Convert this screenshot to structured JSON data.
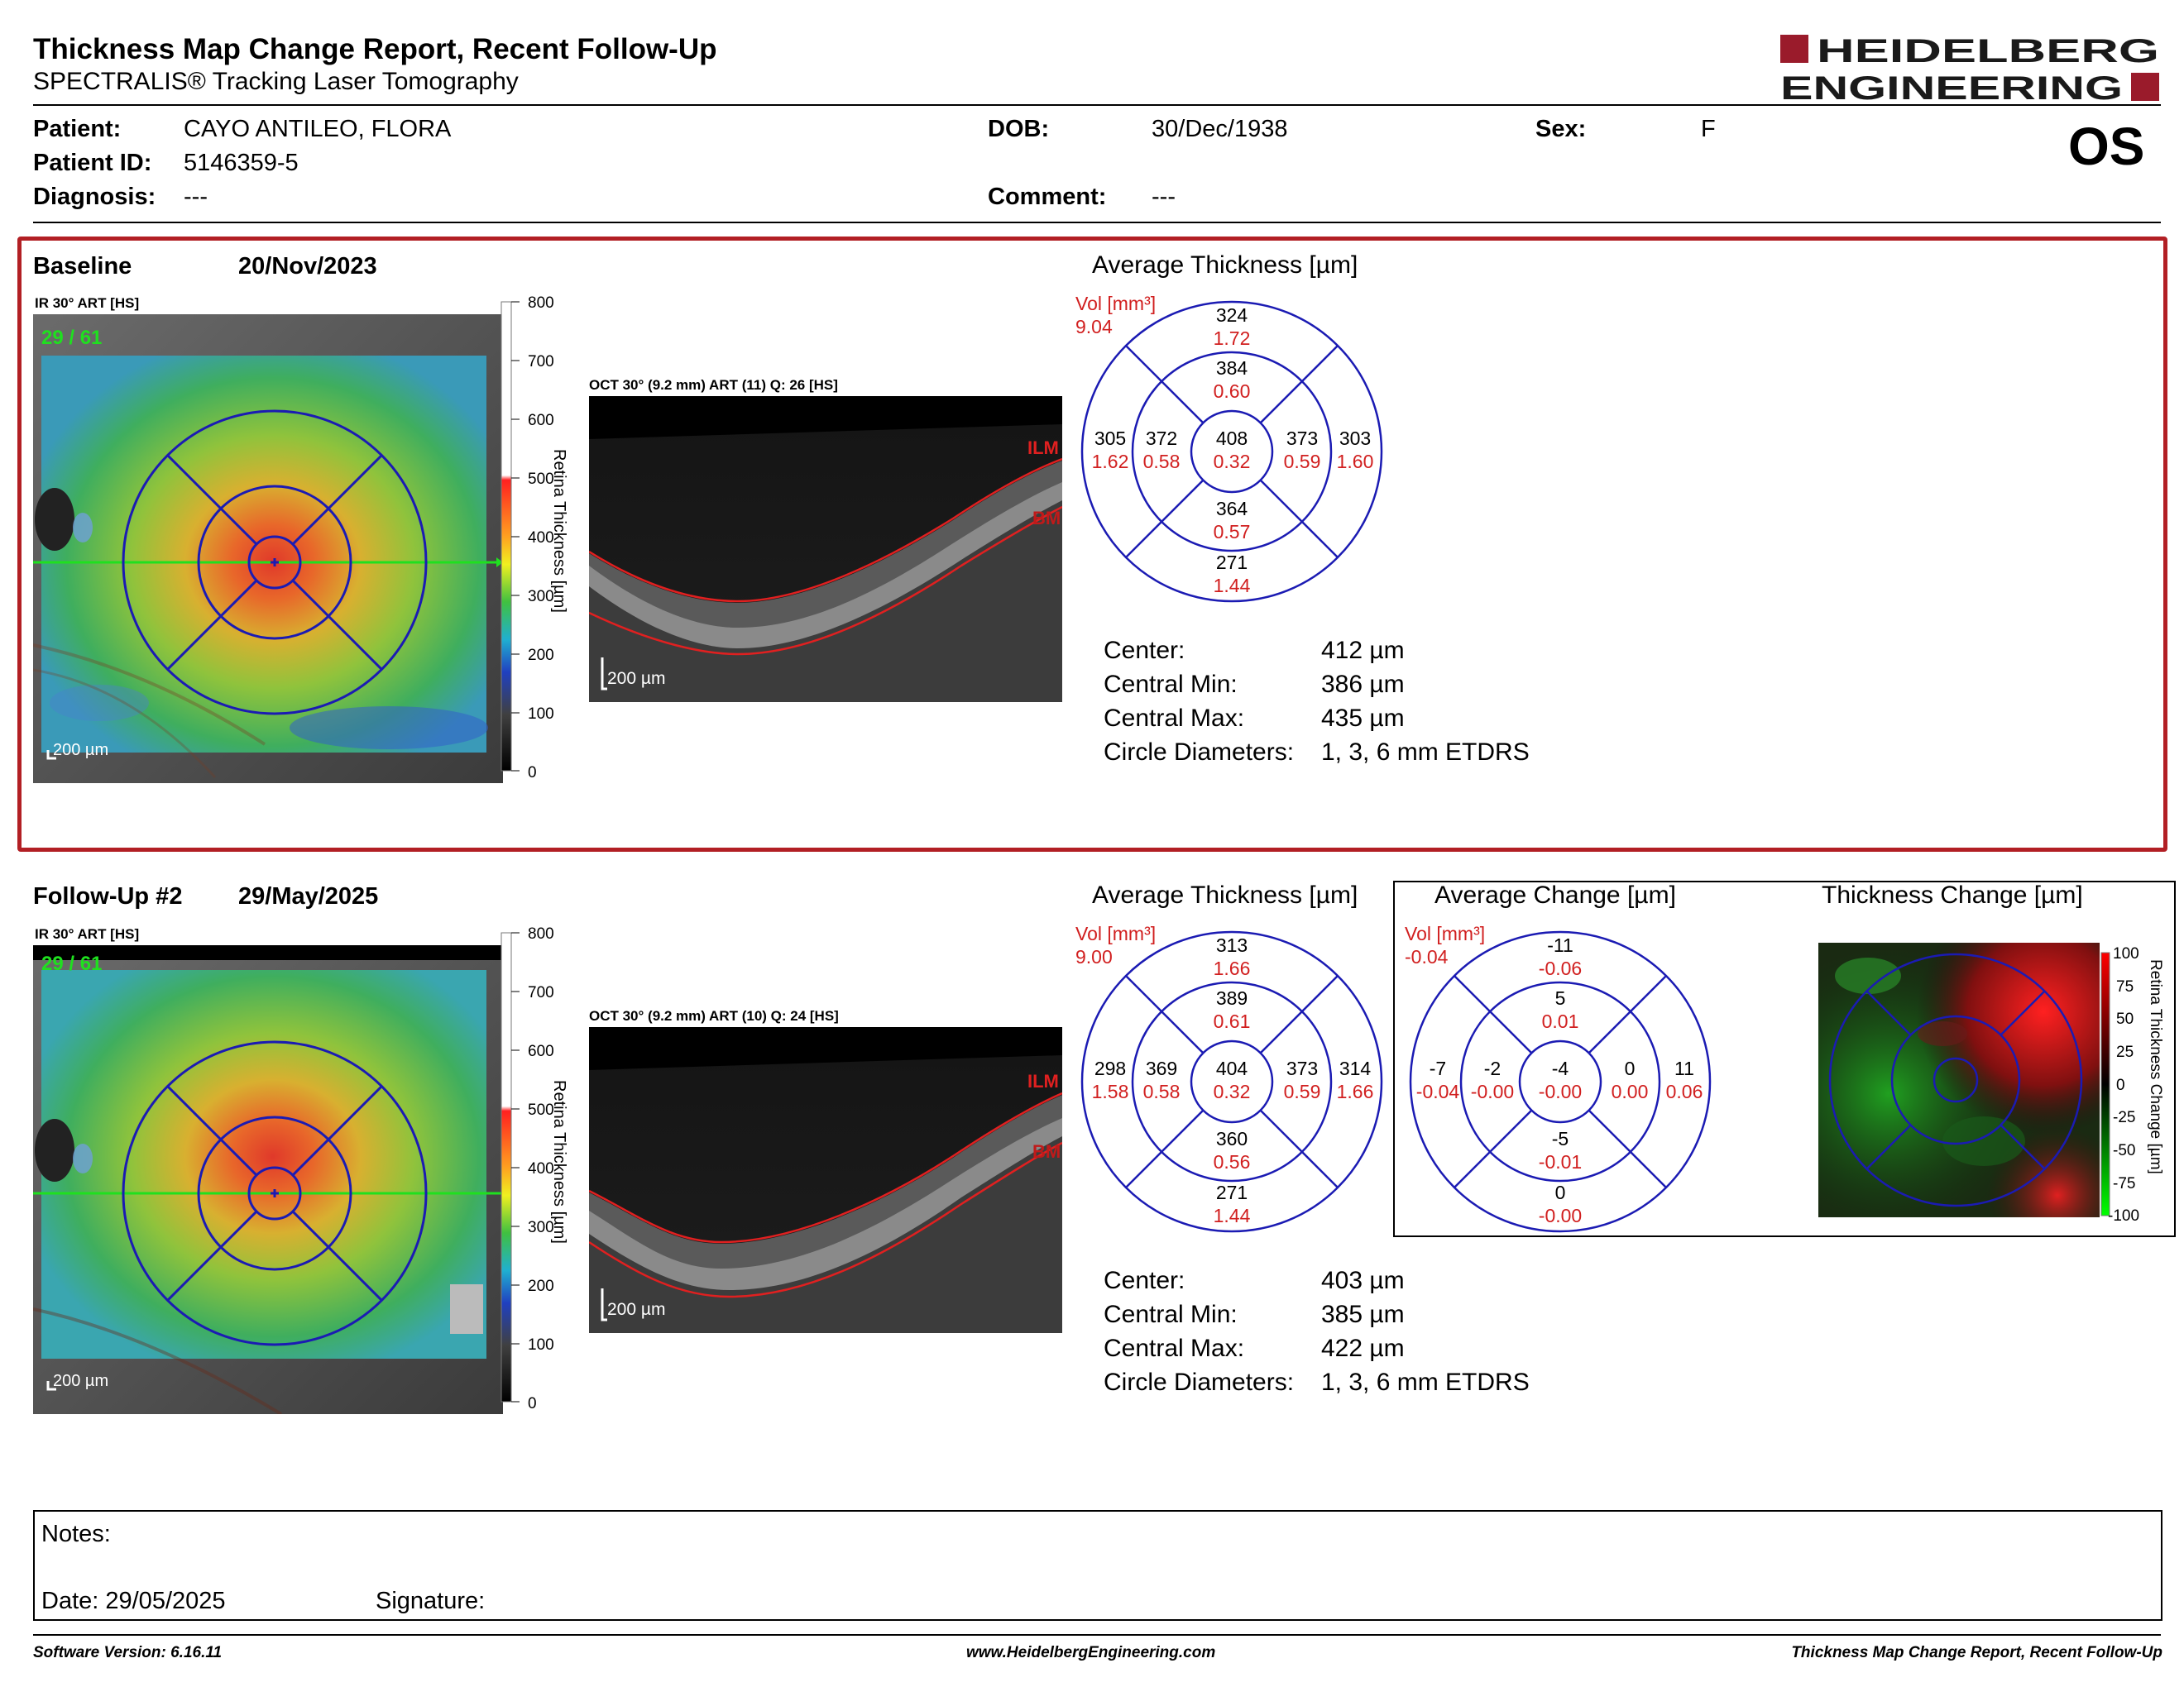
{
  "report": {
    "title": "Thickness Map Change Report, Recent Follow-Up",
    "subtitle": "SPECTRALIS® Tracking Laser Tomography",
    "logo_line1": "HEIDELBERG",
    "logo_line2": "ENGINEERING",
    "eye": "OS"
  },
  "patient": {
    "patient_label": "Patient:",
    "patient_value": "CAYO ANTILEO, FLORA",
    "id_label": "Patient ID:",
    "id_value": "5146359-5",
    "diagnosis_label": "Diagnosis:",
    "diagnosis_value": "---",
    "dob_label": "DOB:",
    "dob_value": "30/Dec/1938",
    "comment_label": "Comment:",
    "comment_value": "---",
    "sex_label": "Sex:",
    "sex_value": "F"
  },
  "colorbar": {
    "ticks": [
      "800",
      "700",
      "600",
      "500",
      "400",
      "300",
      "200",
      "100",
      "0"
    ],
    "label": "Retina Thickness [µm]"
  },
  "change_colorbar": {
    "ticks": [
      "100",
      "75",
      "50",
      "25",
      "0",
      "-25",
      "-50",
      "-75",
      "-100"
    ],
    "label": "Retina Thickness Change [µm]"
  },
  "baseline": {
    "label": "Baseline",
    "date": "20/Nov/2023",
    "ir_label": "IR 30° ART [HS]",
    "frame": "29 / 61",
    "scale": "200 µm",
    "oct_label": "OCT 30° (9.2 mm) ART (11) Q: 26 [HS]",
    "oct_scale": "200 µm",
    "ilm": "ILM",
    "bm": "BM",
    "chart_title": "Average Thickness [µm]",
    "vol_label": "Vol [mm³]",
    "vol_total": "9.04",
    "sectors": {
      "outer_sup": [
        "324",
        "1.72"
      ],
      "inner_sup": [
        "384",
        "0.60"
      ],
      "outer_temp": [
        "305",
        "1.62"
      ],
      "inner_temp": [
        "372",
        "0.58"
      ],
      "center": [
        "408",
        "0.32"
      ],
      "inner_nasal": [
        "373",
        "0.59"
      ],
      "outer_nasal": [
        "303",
        "1.60"
      ],
      "inner_inf": [
        "364",
        "0.57"
      ],
      "outer_inf": [
        "271",
        "1.44"
      ]
    },
    "stats": {
      "center_label": "Center:",
      "center_value": "412 µm",
      "min_label": "Central Min:",
      "min_value": "386 µm",
      "max_label": "Central Max:",
      "max_value": "435 µm",
      "diam_label": "Circle Diameters:",
      "diam_value": "1, 3, 6 mm ETDRS"
    }
  },
  "followup": {
    "label": "Follow-Up #2",
    "date": "29/May/2025",
    "ir_label": "IR 30° ART [HS]",
    "frame": "29 / 61",
    "scale": "200 µm",
    "oct_label": "OCT 30° (9.2 mm) ART (10) Q: 24 [HS]",
    "oct_scale": "200 µm",
    "ilm": "ILM",
    "bm": "BM",
    "chart_title": "Average Thickness [µm]",
    "vol_label": "Vol [mm³]",
    "vol_total": "9.00",
    "sectors": {
      "outer_sup": [
        "313",
        "1.66"
      ],
      "inner_sup": [
        "389",
        "0.61"
      ],
      "outer_temp": [
        "298",
        "1.58"
      ],
      "inner_temp": [
        "369",
        "0.58"
      ],
      "center": [
        "404",
        "0.32"
      ],
      "inner_nasal": [
        "373",
        "0.59"
      ],
      "outer_nasal": [
        "314",
        "1.66"
      ],
      "inner_inf": [
        "360",
        "0.56"
      ],
      "outer_inf": [
        "271",
        "1.44"
      ]
    },
    "stats": {
      "center_label": "Center:",
      "center_value": "403 µm",
      "min_label": "Central Min:",
      "min_value": "385 µm",
      "max_label": "Central Max:",
      "max_value": "422 µm",
      "diam_label": "Circle Diameters:",
      "diam_value": "1, 3, 6 mm ETDRS"
    }
  },
  "change": {
    "chart_title": "Average Change [µm]",
    "map_title": "Thickness Change [µm]",
    "vol_label": "Vol [mm³]",
    "vol_total": "-0.04",
    "sectors": {
      "outer_sup": [
        "-11",
        "-0.06"
      ],
      "inner_sup": [
        "5",
        "0.01"
      ],
      "outer_temp": [
        "-7",
        "-0.04"
      ],
      "inner_temp": [
        "-2",
        "-0.00"
      ],
      "center": [
        "-4",
        "-0.00"
      ],
      "inner_nasal": [
        "0",
        "0.00"
      ],
      "outer_nasal": [
        "11",
        "0.06"
      ],
      "inner_inf": [
        "-5",
        "-0.01"
      ],
      "outer_inf": [
        "0",
        "-0.00"
      ]
    }
  },
  "notes": {
    "notes_label": "Notes:",
    "date_label": "Date: 29/05/2025",
    "signature_label": "Signature:"
  },
  "footer": {
    "software": "Software Version: 6.16.11",
    "website": "www.HeidelbergEngineering.com",
    "report_name": "Thickness Map Change Report, Recent Follow-Up"
  },
  "colors": {
    "accent_red": "#b21f24",
    "grid_blue": "#1b1bb3",
    "value_red": "#d11f1f"
  }
}
